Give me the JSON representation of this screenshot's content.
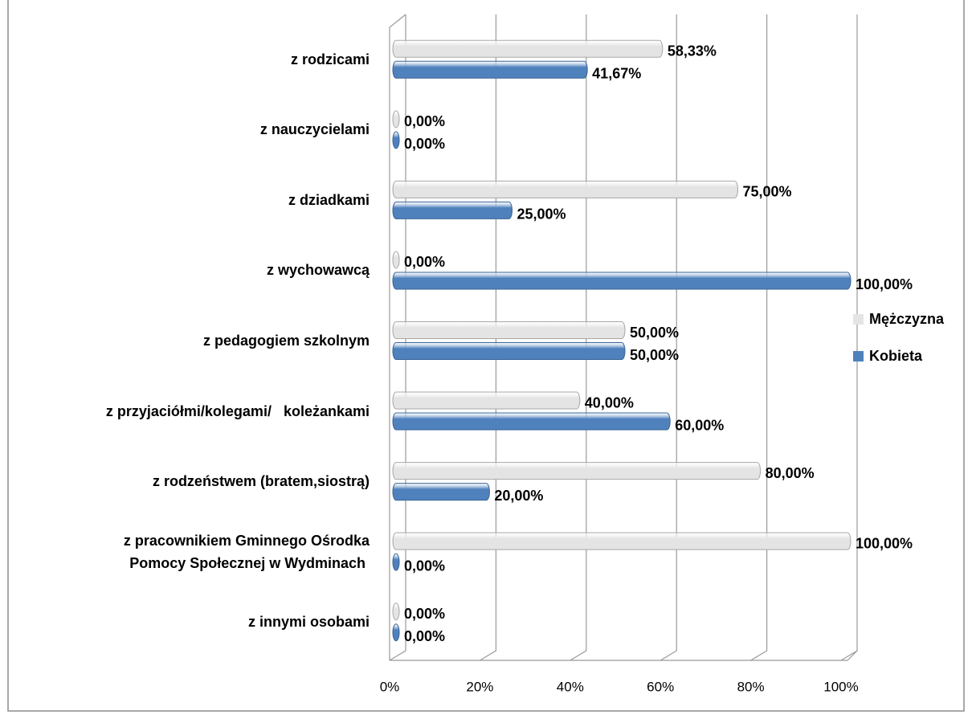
{
  "chart_data": {
    "type": "bar",
    "orientation": "horizontal",
    "categories": [
      "z rodzicami",
      "z nauczycielami",
      "z dziadkami",
      "z wychowawcą",
      "z pedagogiem szkolnym",
      "z przyjaciółmi/kolegami/   koleżankami",
      "z rodzeństwem (bratem,siostrą)",
      "z pracownikiem Gminnego Ośrodka\nPomocy Społecznej w Wydminach ",
      "z innymi osobami"
    ],
    "series": [
      {
        "name": "Mężczyzna",
        "color": "#e4e4e4",
        "values": [
          58.33,
          0,
          75,
          0,
          50,
          40,
          80,
          100,
          0
        ],
        "value_labels": [
          "58,33%",
          "0,00%",
          "75,00%",
          "0,00%",
          "50,00%",
          "40,00%",
          "80,00%",
          "100,00%",
          "0,00%"
        ]
      },
      {
        "name": "Kobieta",
        "color": "#4f81bd",
        "values": [
          41.67,
          0,
          25,
          100,
          50,
          60,
          20,
          0,
          0
        ],
        "value_labels": [
          "41,67%",
          "0,00%",
          "25,00%",
          "100,00%",
          "50,00%",
          "60,00%",
          "20,00%",
          "0,00%",
          "0,00%"
        ]
      }
    ],
    "xlim": [
      0,
      100
    ],
    "xticks": [
      {
        "value": 0,
        "label": "0%"
      },
      {
        "value": 20,
        "label": "20%"
      },
      {
        "value": 40,
        "label": "40%"
      },
      {
        "value": 60,
        "label": "60%"
      },
      {
        "value": 80,
        "label": "80%"
      },
      {
        "value": 100,
        "label": "100%"
      }
    ],
    "grid": true,
    "legend": "right"
  }
}
